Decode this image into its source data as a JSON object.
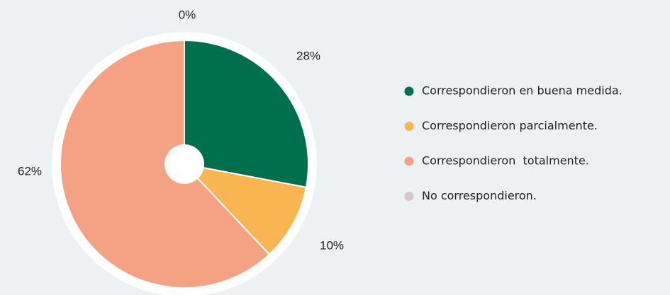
{
  "chart_data": {
    "type": "pie",
    "categories": [
      "Correspondieron en buena medida.",
      "Correspondieron parcialmente.",
      "Correspondieron  totalmente.",
      "No correspondieron."
    ],
    "values": [
      28,
      10,
      62,
      0
    ],
    "value_labels": [
      "28%",
      "10%",
      "62%",
      "0%"
    ],
    "colors": [
      "#006f4e",
      "#f9b552",
      "#f4a184",
      "#d9c5cf"
    ],
    "legend": "right"
  }
}
